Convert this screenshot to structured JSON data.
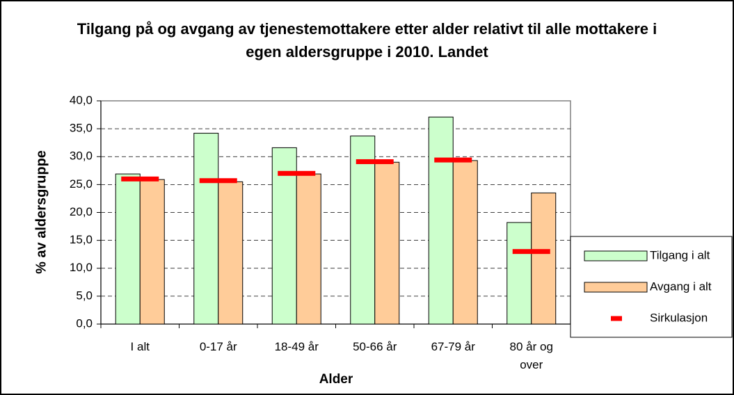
{
  "chart_data": {
    "type": "bar",
    "title": "Tilgang på og avgang av tjenestemottakere etter alder relativt til alle mottakere i egen aldersgruppe i 2010. Landet",
    "x_label": "Alder",
    "y_label": "% av aldersgruppe",
    "categories": [
      "I alt",
      "0-17 år",
      "18-49 år",
      "50-66 år",
      "67-79 år",
      "80 år og over"
    ],
    "series": [
      {
        "name": "Tilgang i alt",
        "color": "#ccffcc",
        "values": [
          26.9,
          34.2,
          31.6,
          33.7,
          37.1,
          18.2
        ]
      },
      {
        "name": "Avgang i alt",
        "color": "#ffcc99",
        "values": [
          25.9,
          25.5,
          26.9,
          29.0,
          29.3,
          23.5
        ]
      },
      {
        "name": "Sirkulasjon",
        "color": "#ff0000",
        "marker": "dash",
        "values": [
          26.0,
          25.7,
          27.0,
          29.1,
          29.4,
          13.0
        ]
      }
    ],
    "ylim": [
      0,
      40
    ],
    "yticks": [
      {
        "value": 0,
        "label": "0,0"
      },
      {
        "value": 5,
        "label": "5,0"
      },
      {
        "value": 10,
        "label": "10,0"
      },
      {
        "value": 15,
        "label": "15,0"
      },
      {
        "value": 20,
        "label": "20,0"
      },
      {
        "value": 25,
        "label": "25,0"
      },
      {
        "value": 30,
        "label": "30,0"
      },
      {
        "value": 35,
        "label": "35,0"
      },
      {
        "value": 40,
        "label": "40,0"
      }
    ],
    "grid": true,
    "legend": "right"
  }
}
